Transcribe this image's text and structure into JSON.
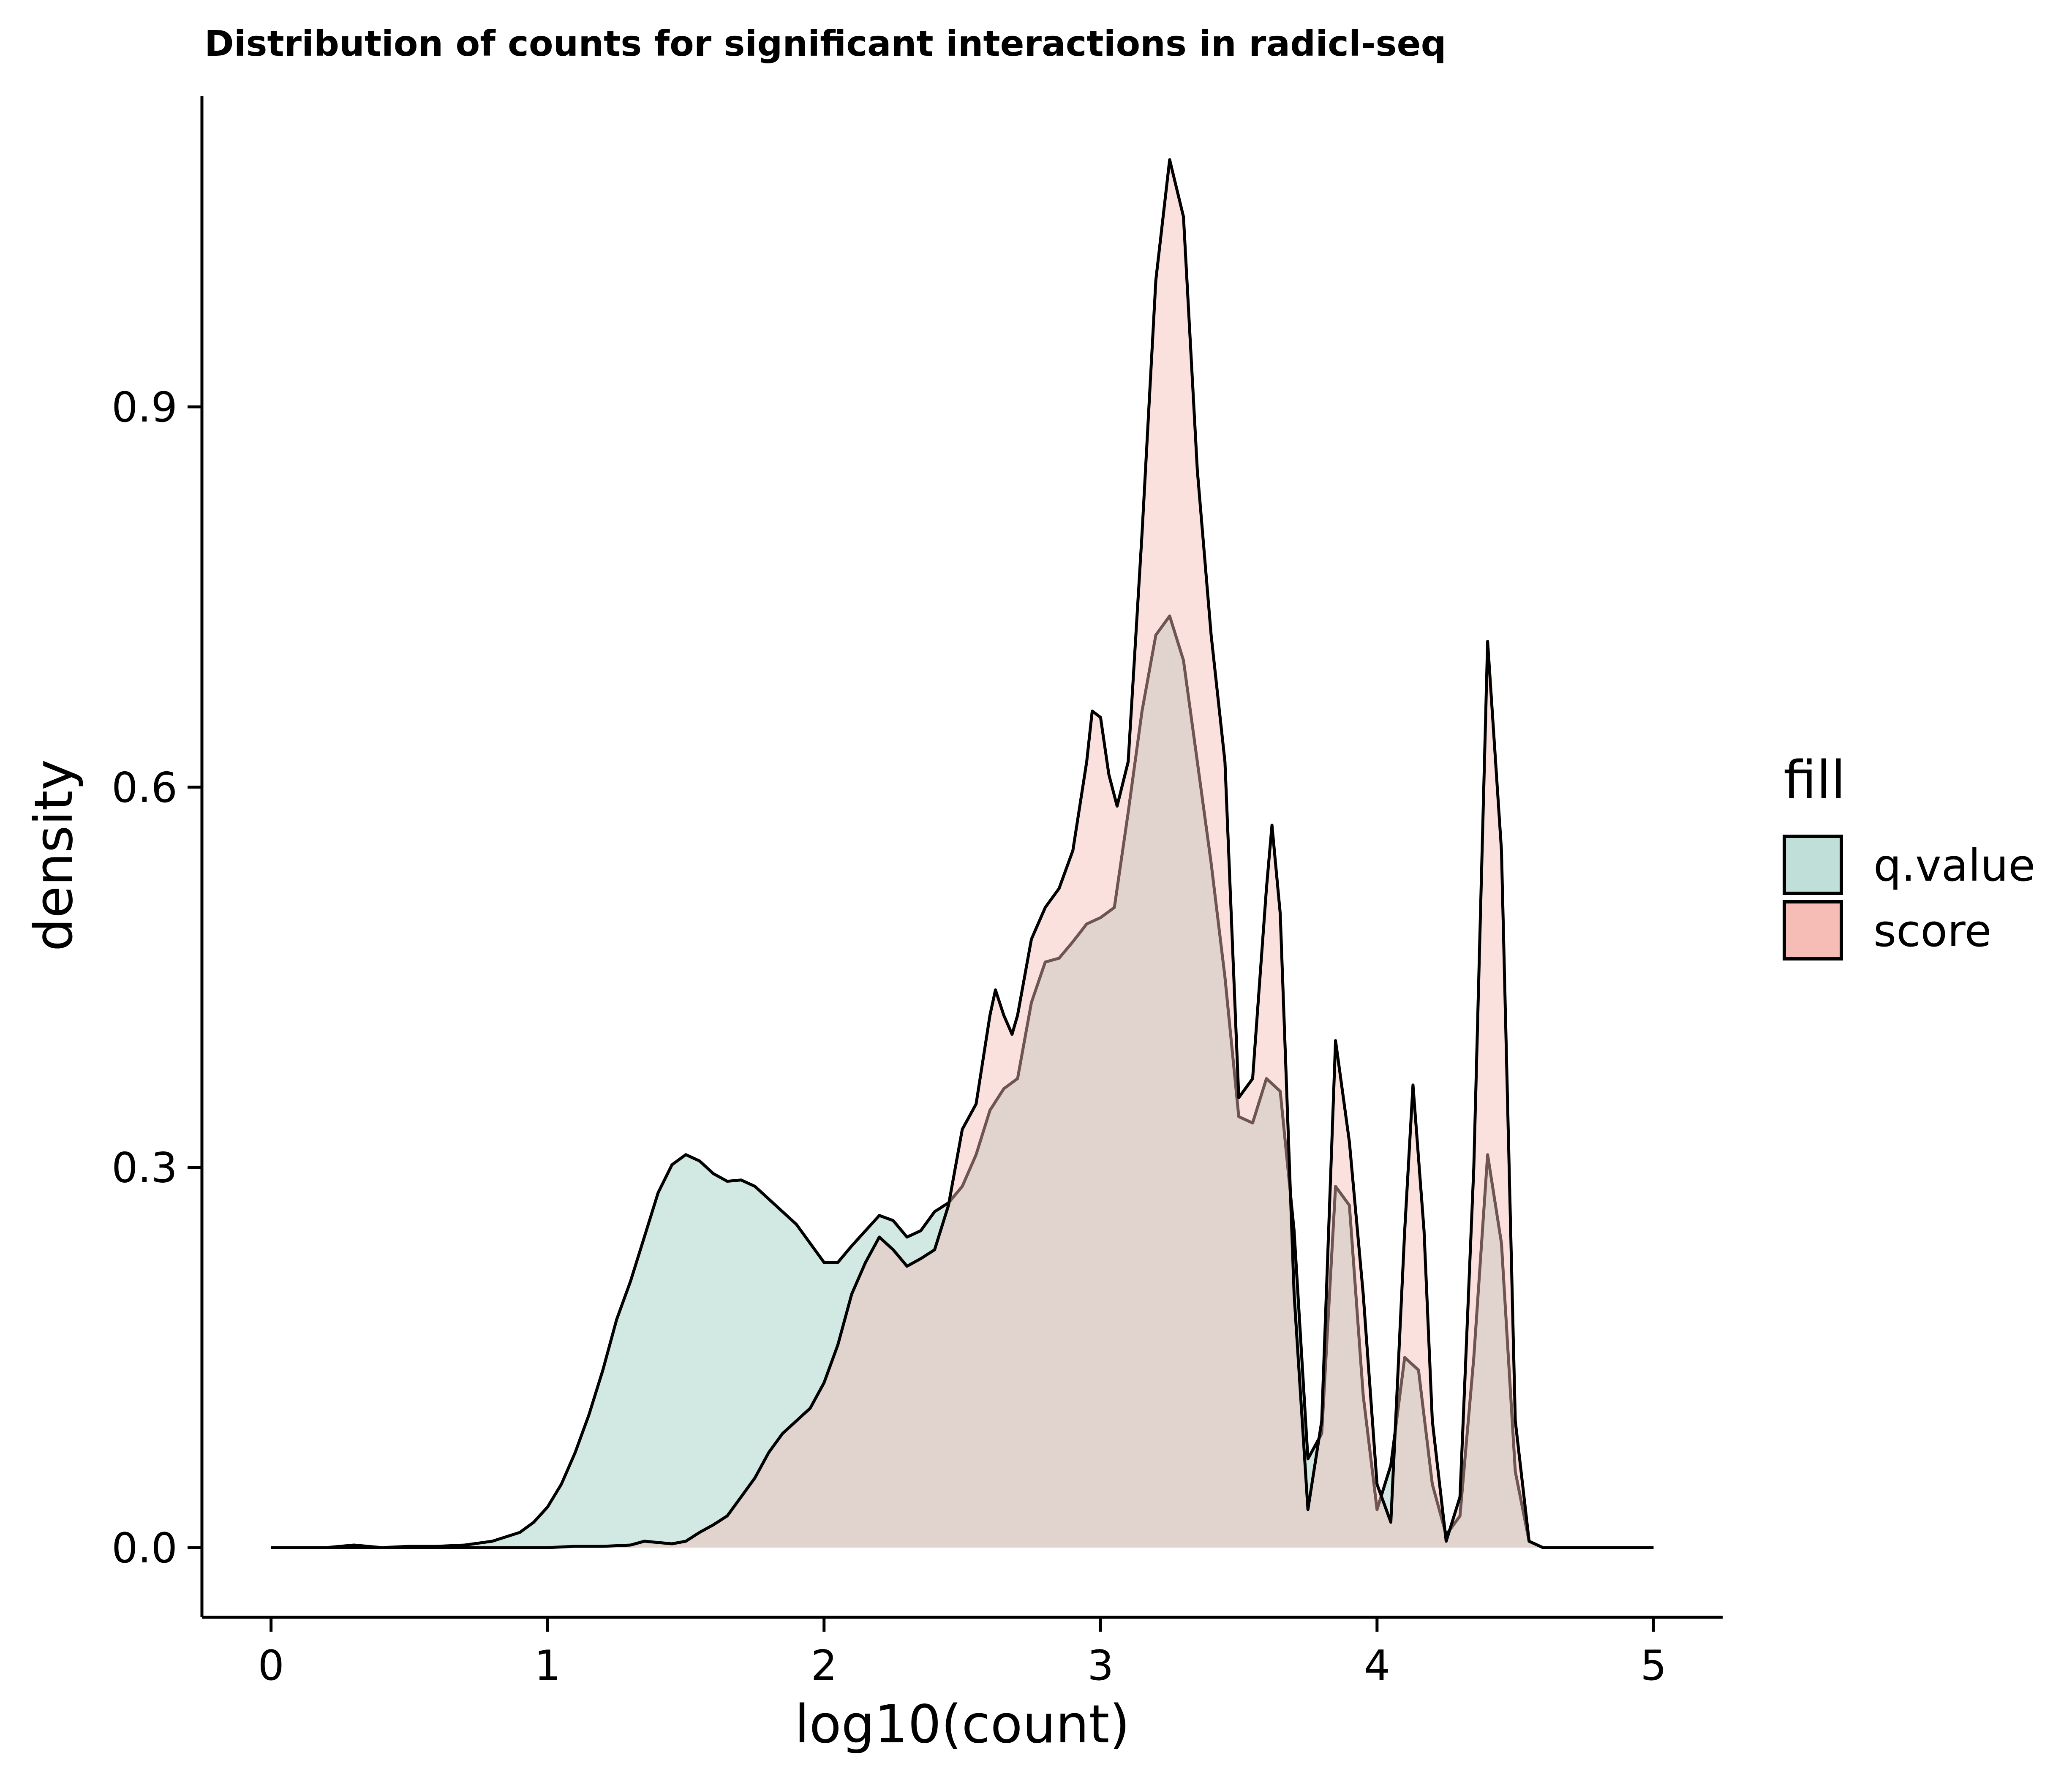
{
  "chart_data": {
    "type": "area",
    "title": "Distribution of counts for significant interactions in radicl-seq",
    "xlabel": "log10(count)",
    "ylabel": "density",
    "xlim": [
      -0.25,
      5.25
    ],
    "ylim": [
      -0.055,
      1.145
    ],
    "x_ticks": [
      0,
      1,
      2,
      3,
      4,
      5
    ],
    "y_ticks": [
      0.0,
      0.3,
      0.6,
      0.9
    ],
    "x_tick_labels": [
      "0",
      "1",
      "2",
      "3",
      "4",
      "5"
    ],
    "y_tick_labels": [
      "0.0",
      "0.3",
      "0.6",
      "0.9"
    ],
    "grid": false,
    "legend": {
      "title": "fill",
      "position": "right",
      "entries": [
        {
          "label": "q.value",
          "color": "#bfdfd8"
        },
        {
          "label": "score",
          "color": "#f5bdb6"
        }
      ]
    },
    "series": [
      {
        "name": "q.value",
        "fill": "#a6d2c8",
        "fill_opacity": 0.5,
        "points": [
          [
            0.0,
            0.0
          ],
          [
            0.1,
            0.0
          ],
          [
            0.2,
            0.0
          ],
          [
            0.3,
            0.002
          ],
          [
            0.4,
            0.0
          ],
          [
            0.5,
            0.001
          ],
          [
            0.6,
            0.001
          ],
          [
            0.7,
            0.002
          ],
          [
            0.8,
            0.005
          ],
          [
            0.9,
            0.012
          ],
          [
            0.95,
            0.02
          ],
          [
            1.0,
            0.032
          ],
          [
            1.05,
            0.05
          ],
          [
            1.1,
            0.075
          ],
          [
            1.15,
            0.105
          ],
          [
            1.2,
            0.14
          ],
          [
            1.25,
            0.18
          ],
          [
            1.3,
            0.21
          ],
          [
            1.35,
            0.245
          ],
          [
            1.4,
            0.28
          ],
          [
            1.45,
            0.302
          ],
          [
            1.5,
            0.31
          ],
          [
            1.55,
            0.305
          ],
          [
            1.6,
            0.295
          ],
          [
            1.65,
            0.289
          ],
          [
            1.7,
            0.29
          ],
          [
            1.75,
            0.285
          ],
          [
            1.8,
            0.275
          ],
          [
            1.85,
            0.265
          ],
          [
            1.9,
            0.255
          ],
          [
            1.95,
            0.24
          ],
          [
            2.0,
            0.225
          ],
          [
            2.05,
            0.225
          ],
          [
            2.1,
            0.238
          ],
          [
            2.15,
            0.25
          ],
          [
            2.2,
            0.262
          ],
          [
            2.25,
            0.258
          ],
          [
            2.3,
            0.245
          ],
          [
            2.35,
            0.25
          ],
          [
            2.4,
            0.265
          ],
          [
            2.45,
            0.272
          ],
          [
            2.5,
            0.285
          ],
          [
            2.55,
            0.31
          ],
          [
            2.6,
            0.345
          ],
          [
            2.65,
            0.362
          ],
          [
            2.7,
            0.37
          ],
          [
            2.75,
            0.43
          ],
          [
            2.8,
            0.462
          ],
          [
            2.85,
            0.465
          ],
          [
            2.9,
            0.478
          ],
          [
            2.95,
            0.492
          ],
          [
            3.0,
            0.497
          ],
          [
            3.05,
            0.505
          ],
          [
            3.1,
            0.58
          ],
          [
            3.15,
            0.66
          ],
          [
            3.2,
            0.72
          ],
          [
            3.25,
            0.735
          ],
          [
            3.3,
            0.7
          ],
          [
            3.35,
            0.62
          ],
          [
            3.4,
            0.54
          ],
          [
            3.45,
            0.45
          ],
          [
            3.5,
            0.34
          ],
          [
            3.55,
            0.335
          ],
          [
            3.6,
            0.37
          ],
          [
            3.65,
            0.36
          ],
          [
            3.7,
            0.25
          ],
          [
            3.75,
            0.07
          ],
          [
            3.8,
            0.09
          ],
          [
            3.85,
            0.285
          ],
          [
            3.9,
            0.27
          ],
          [
            3.95,
            0.12
          ],
          [
            4.0,
            0.03
          ],
          [
            4.05,
            0.065
          ],
          [
            4.1,
            0.15
          ],
          [
            4.15,
            0.14
          ],
          [
            4.2,
            0.05
          ],
          [
            4.25,
            0.01
          ],
          [
            4.3,
            0.025
          ],
          [
            4.35,
            0.15
          ],
          [
            4.4,
            0.31
          ],
          [
            4.45,
            0.24
          ],
          [
            4.5,
            0.06
          ],
          [
            4.55,
            0.005
          ],
          [
            4.6,
            0.0
          ],
          [
            4.8,
            0.0
          ],
          [
            5.0,
            0.0
          ]
        ]
      },
      {
        "name": "score",
        "fill": "#f5bdb6",
        "fill_opacity": 0.45,
        "points": [
          [
            0.0,
            0.0
          ],
          [
            0.5,
            0.0
          ],
          [
            0.8,
            0.0
          ],
          [
            1.0,
            0.0
          ],
          [
            1.1,
            0.001
          ],
          [
            1.2,
            0.001
          ],
          [
            1.3,
            0.002
          ],
          [
            1.35,
            0.005
          ],
          [
            1.45,
            0.003
          ],
          [
            1.5,
            0.005
          ],
          [
            1.55,
            0.012
          ],
          [
            1.6,
            0.018
          ],
          [
            1.65,
            0.025
          ],
          [
            1.7,
            0.04
          ],
          [
            1.75,
            0.055
          ],
          [
            1.8,
            0.075
          ],
          [
            1.85,
            0.09
          ],
          [
            1.9,
            0.1
          ],
          [
            1.95,
            0.11
          ],
          [
            2.0,
            0.13
          ],
          [
            2.05,
            0.16
          ],
          [
            2.1,
            0.2
          ],
          [
            2.15,
            0.225
          ],
          [
            2.2,
            0.245
          ],
          [
            2.25,
            0.235
          ],
          [
            2.3,
            0.222
          ],
          [
            2.35,
            0.228
          ],
          [
            2.4,
            0.235
          ],
          [
            2.45,
            0.27
          ],
          [
            2.5,
            0.33
          ],
          [
            2.55,
            0.35
          ],
          [
            2.6,
            0.42
          ],
          [
            2.62,
            0.44
          ],
          [
            2.65,
            0.42
          ],
          [
            2.68,
            0.405
          ],
          [
            2.7,
            0.42
          ],
          [
            2.75,
            0.48
          ],
          [
            2.8,
            0.505
          ],
          [
            2.85,
            0.52
          ],
          [
            2.9,
            0.55
          ],
          [
            2.95,
            0.62
          ],
          [
            2.97,
            0.66
          ],
          [
            3.0,
            0.655
          ],
          [
            3.03,
            0.61
          ],
          [
            3.06,
            0.585
          ],
          [
            3.1,
            0.62
          ],
          [
            3.15,
            0.8
          ],
          [
            3.2,
            1.0
          ],
          [
            3.25,
            1.095
          ],
          [
            3.3,
            1.05
          ],
          [
            3.35,
            0.85
          ],
          [
            3.4,
            0.72
          ],
          [
            3.45,
            0.62
          ],
          [
            3.5,
            0.355
          ],
          [
            3.55,
            0.37
          ],
          [
            3.6,
            0.52
          ],
          [
            3.62,
            0.57
          ],
          [
            3.65,
            0.5
          ],
          [
            3.7,
            0.2
          ],
          [
            3.75,
            0.03
          ],
          [
            3.8,
            0.1
          ],
          [
            3.85,
            0.4
          ],
          [
            3.9,
            0.32
          ],
          [
            3.95,
            0.2
          ],
          [
            4.0,
            0.05
          ],
          [
            4.05,
            0.02
          ],
          [
            4.1,
            0.25
          ],
          [
            4.13,
            0.365
          ],
          [
            4.17,
            0.25
          ],
          [
            4.2,
            0.1
          ],
          [
            4.25,
            0.005
          ],
          [
            4.3,
            0.04
          ],
          [
            4.35,
            0.3
          ],
          [
            4.4,
            0.715
          ],
          [
            4.45,
            0.55
          ],
          [
            4.5,
            0.1
          ],
          [
            4.55,
            0.005
          ],
          [
            4.6,
            0.0
          ],
          [
            5.0,
            0.0
          ]
        ]
      }
    ]
  }
}
